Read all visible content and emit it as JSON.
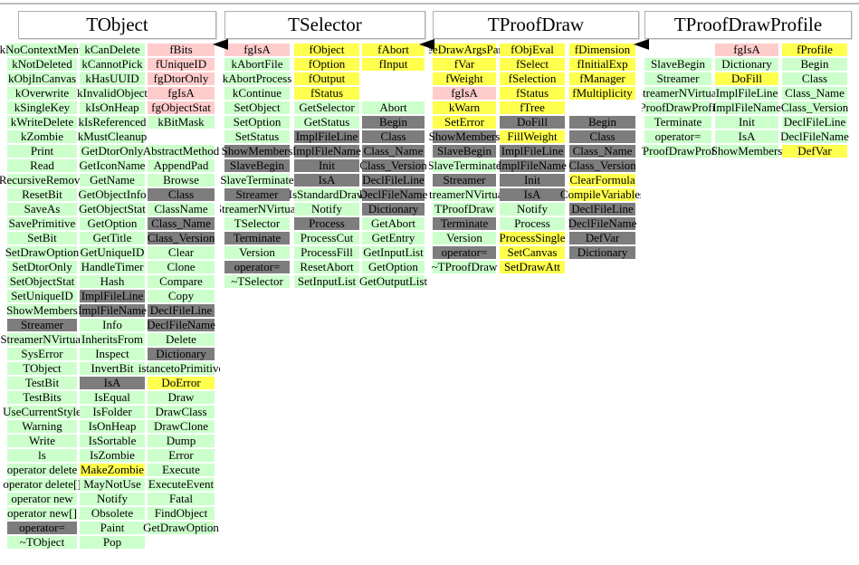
{
  "diagram": {
    "kind": "class-inheritance-members-diagram",
    "colors": {
      "member_green": "#ccffcc",
      "data_pink": "#ffcccc",
      "highlight_yellow": "#ffff4d",
      "inherited_gray": "#7d7d7d",
      "box_border": "#aeaeae",
      "arrow_black": "#000000"
    },
    "arrows": [
      {
        "name": "inheritance-arrow",
        "from": "TSelector",
        "to": "TObject"
      },
      {
        "name": "inheritance-arrow",
        "from": "TProofDraw",
        "to": "TSelector"
      },
      {
        "name": "inheritance-arrow",
        "from": "TProofDrawProfile",
        "to": "TProofDraw"
      }
    ],
    "panels": [
      {
        "title": "TObject",
        "rows": [
          [
            [
              "kNoContextMenu",
              "g"
            ],
            [
              "kCanDelete",
              "g"
            ],
            [
              "fBits",
              "p"
            ]
          ],
          [
            [
              "kNotDeleted",
              "g"
            ],
            [
              "kCannotPick",
              "g"
            ],
            [
              "fUniqueID",
              "p"
            ]
          ],
          [
            [
              "kObjInCanvas",
              "g"
            ],
            [
              "kHasUUID",
              "g"
            ],
            [
              "fgDtorOnly",
              "p"
            ]
          ],
          [
            [
              "kOverwrite",
              "g"
            ],
            [
              "kInvalidObject",
              "g"
            ],
            [
              "fgIsA",
              "p"
            ]
          ],
          [
            [
              "kSingleKey",
              "g"
            ],
            [
              "kIsOnHeap",
              "g"
            ],
            [
              "fgObjectStat",
              "p"
            ]
          ],
          [
            [
              "kWriteDelete",
              "g"
            ],
            [
              "kIsReferenced",
              "g"
            ],
            [
              "kBitMask",
              "g"
            ]
          ],
          [
            [
              "kZombie",
              "g"
            ],
            [
              "kMustCleanup",
              "g"
            ],
            [
              "",
              ""
            ]
          ],
          [
            [
              "Print",
              "g"
            ],
            [
              "GetDtorOnly",
              "g"
            ],
            [
              "AbstractMethod",
              "g"
            ]
          ],
          [
            [
              "Read",
              "g"
            ],
            [
              "GetIconName",
              "g"
            ],
            [
              "AppendPad",
              "g"
            ]
          ],
          [
            [
              "RecursiveRemove",
              "g"
            ],
            [
              "GetName",
              "g"
            ],
            [
              "Browse",
              "g"
            ]
          ],
          [
            [
              "ResetBit",
              "g"
            ],
            [
              "GetObjectInfo",
              "g"
            ],
            [
              "Class",
              "d"
            ]
          ],
          [
            [
              "SaveAs",
              "g"
            ],
            [
              "GetObjectStat",
              "g"
            ],
            [
              "ClassName",
              "g"
            ]
          ],
          [
            [
              "SavePrimitive",
              "g"
            ],
            [
              "GetOption",
              "g"
            ],
            [
              "Class_Name",
              "d"
            ]
          ],
          [
            [
              "SetBit",
              "g"
            ],
            [
              "GetTitle",
              "g"
            ],
            [
              "Class_Version",
              "d"
            ]
          ],
          [
            [
              "SetDrawOption",
              "g"
            ],
            [
              "GetUniqueID",
              "g"
            ],
            [
              "Clear",
              "g"
            ]
          ],
          [
            [
              "SetDtorOnly",
              "g"
            ],
            [
              "HandleTimer",
              "g"
            ],
            [
              "Clone",
              "g"
            ]
          ],
          [
            [
              "SetObjectStat",
              "g"
            ],
            [
              "Hash",
              "g"
            ],
            [
              "Compare",
              "g"
            ]
          ],
          [
            [
              "SetUniqueID",
              "g"
            ],
            [
              "ImplFileLine",
              "d"
            ],
            [
              "Copy",
              "g"
            ]
          ],
          [
            [
              "ShowMembers",
              "g"
            ],
            [
              "ImplFileName",
              "d"
            ],
            [
              "DeclFileLine",
              "d"
            ]
          ],
          [
            [
              "Streamer",
              "d"
            ],
            [
              "Info",
              "g"
            ],
            [
              "DeclFileName",
              "d"
            ]
          ],
          [
            [
              "StreamerNVirtual",
              "g"
            ],
            [
              "InheritsFrom",
              "g"
            ],
            [
              "Delete",
              "g"
            ]
          ],
          [
            [
              "SysError",
              "g"
            ],
            [
              "Inspect",
              "g"
            ],
            [
              "Dictionary",
              "d"
            ]
          ],
          [
            [
              "TObject",
              "g"
            ],
            [
              "InvertBit",
              "g"
            ],
            [
              "istancetoPrimitive",
              "g"
            ]
          ],
          [
            [
              "TestBit",
              "g"
            ],
            [
              "IsA",
              "d"
            ],
            [
              "DoError",
              "y"
            ]
          ],
          [
            [
              "TestBits",
              "g"
            ],
            [
              "IsEqual",
              "g"
            ],
            [
              "Draw",
              "g"
            ]
          ],
          [
            [
              "UseCurrentStyle",
              "g"
            ],
            [
              "IsFolder",
              "g"
            ],
            [
              "DrawClass",
              "g"
            ]
          ],
          [
            [
              "Warning",
              "g"
            ],
            [
              "IsOnHeap",
              "g"
            ],
            [
              "DrawClone",
              "g"
            ]
          ],
          [
            [
              "Write",
              "g"
            ],
            [
              "IsSortable",
              "g"
            ],
            [
              "Dump",
              "g"
            ]
          ],
          [
            [
              "ls",
              "g"
            ],
            [
              "IsZombie",
              "g"
            ],
            [
              "Error",
              "g"
            ]
          ],
          [
            [
              "operator delete",
              "g"
            ],
            [
              "MakeZombie",
              "y"
            ],
            [
              "Execute",
              "g"
            ]
          ],
          [
            [
              "operator delete[]",
              "g"
            ],
            [
              "MayNotUse",
              "g"
            ],
            [
              "ExecuteEvent",
              "g"
            ]
          ],
          [
            [
              "operator new",
              "g"
            ],
            [
              "Notify",
              "g"
            ],
            [
              "Fatal",
              "g"
            ]
          ],
          [
            [
              "operator new[]",
              "g"
            ],
            [
              "Obsolete",
              "g"
            ],
            [
              "FindObject",
              "g"
            ]
          ],
          [
            [
              "operator=",
              "d"
            ],
            [
              "Paint",
              "g"
            ],
            [
              "GetDrawOption",
              "g"
            ]
          ],
          [
            [
              "~TObject",
              "g"
            ],
            [
              "Pop",
              "g"
            ],
            [
              "",
              ""
            ]
          ]
        ]
      },
      {
        "title": "TSelector",
        "rows": [
          [
            [
              "fgIsA",
              "p"
            ],
            [
              "fObject",
              "y"
            ],
            [
              "fAbort",
              "y"
            ]
          ],
          [
            [
              "kAbortFile",
              "g"
            ],
            [
              "fOption",
              "y"
            ],
            [
              "fInput",
              "y"
            ]
          ],
          [
            [
              "kAbortProcess",
              "g"
            ],
            [
              "fOutput",
              "y"
            ],
            [
              "",
              ""
            ]
          ],
          [
            [
              "kContinue",
              "g"
            ],
            [
              "fStatus",
              "y"
            ],
            [
              "",
              ""
            ]
          ],
          [
            [
              "SetObject",
              "g"
            ],
            [
              "GetSelector",
              "g"
            ],
            [
              "Abort",
              "g"
            ]
          ],
          [
            [
              "SetOption",
              "g"
            ],
            [
              "GetStatus",
              "g"
            ],
            [
              "Begin",
              "d"
            ]
          ],
          [
            [
              "SetStatus",
              "g"
            ],
            [
              "ImplFileLine",
              "d"
            ],
            [
              "Class",
              "d"
            ]
          ],
          [
            [
              "ShowMembers",
              "d"
            ],
            [
              "ImplFileName",
              "d"
            ],
            [
              "Class_Name",
              "d"
            ]
          ],
          [
            [
              "SlaveBegin",
              "d"
            ],
            [
              "Init",
              "d"
            ],
            [
              "Class_Version",
              "d"
            ]
          ],
          [
            [
              "SlaveTerminate",
              "g"
            ],
            [
              "IsA",
              "d"
            ],
            [
              "DeclFileLine",
              "d"
            ]
          ],
          [
            [
              "Streamer",
              "d"
            ],
            [
              "IsStandardDraw",
              "g"
            ],
            [
              "DeclFileName",
              "d"
            ]
          ],
          [
            [
              "StreamerNVirtual",
              "g"
            ],
            [
              "Notify",
              "g"
            ],
            [
              "Dictionary",
              "d"
            ]
          ],
          [
            [
              "TSelector",
              "g"
            ],
            [
              "Process",
              "d"
            ],
            [
              "GetAbort",
              "g"
            ]
          ],
          [
            [
              "Terminate",
              "d"
            ],
            [
              "ProcessCut",
              "g"
            ],
            [
              "GetEntry",
              "g"
            ]
          ],
          [
            [
              "Version",
              "g"
            ],
            [
              "ProcessFill",
              "g"
            ],
            [
              "GetInputList",
              "g"
            ]
          ],
          [
            [
              "operator=",
              "d"
            ],
            [
              "ResetAbort",
              "g"
            ],
            [
              "GetOption",
              "g"
            ]
          ],
          [
            [
              "~TSelector",
              "g"
            ],
            [
              "SetInputList",
              "g"
            ],
            [
              "GetOutputList",
              "g"
            ]
          ]
        ]
      },
      {
        "title": "TProofDraw",
        "rows": [
          [
            [
              "fTreeDrawArgsParser",
              "y"
            ],
            [
              "fObjEval",
              "y"
            ],
            [
              "fDimension",
              "y"
            ]
          ],
          [
            [
              "fVar",
              "y"
            ],
            [
              "fSelect",
              "y"
            ],
            [
              "fInitialExp",
              "y"
            ]
          ],
          [
            [
              "fWeight",
              "y"
            ],
            [
              "fSelection",
              "y"
            ],
            [
              "fManager",
              "y"
            ]
          ],
          [
            [
              "fgIsA",
              "p"
            ],
            [
              "fStatus",
              "y"
            ],
            [
              "fMultiplicity",
              "y"
            ]
          ],
          [
            [
              "kWarn",
              "y"
            ],
            [
              "fTree",
              "y"
            ],
            [
              "",
              ""
            ]
          ],
          [
            [
              "SetError",
              "y"
            ],
            [
              "DoFill",
              "d"
            ],
            [
              "Begin",
              "d"
            ]
          ],
          [
            [
              "ShowMembers",
              "d"
            ],
            [
              "FillWeight",
              "y"
            ],
            [
              "Class",
              "d"
            ]
          ],
          [
            [
              "SlaveBegin",
              "d"
            ],
            [
              "ImplFileLine",
              "d"
            ],
            [
              "Class_Name",
              "d"
            ]
          ],
          [
            [
              "SlaveTerminate",
              "g"
            ],
            [
              "ImplFileName",
              "d"
            ],
            [
              "Class_Version",
              "d"
            ]
          ],
          [
            [
              "Streamer",
              "d"
            ],
            [
              "Init",
              "d"
            ],
            [
              "ClearFormula",
              "y"
            ]
          ],
          [
            [
              "StreamerNVirtual",
              "g"
            ],
            [
              "IsA",
              "d"
            ],
            [
              "CompileVariables",
              "y"
            ]
          ],
          [
            [
              "TProofDraw",
              "g"
            ],
            [
              "Notify",
              "g"
            ],
            [
              "DeclFileLine",
              "d"
            ]
          ],
          [
            [
              "Terminate",
              "d"
            ],
            [
              "Process",
              "g"
            ],
            [
              "DeclFileName",
              "d"
            ]
          ],
          [
            [
              "Version",
              "g"
            ],
            [
              "ProcessSingle",
              "y"
            ],
            [
              "DefVar",
              "d"
            ]
          ],
          [
            [
              "operator=",
              "d"
            ],
            [
              "SetCanvas",
              "y"
            ],
            [
              "Dictionary",
              "d"
            ]
          ],
          [
            [
              "~TProofDraw",
              "g"
            ],
            [
              "SetDrawAtt",
              "y"
            ],
            [
              "",
              ""
            ]
          ]
        ]
      },
      {
        "title": "TProofDrawProfile",
        "rows": [
          [
            [
              "",
              ""
            ],
            [
              "fgIsA",
              "p"
            ],
            [
              "fProfile",
              "y"
            ]
          ],
          [
            [
              "SlaveBegin",
              "g"
            ],
            [
              "Dictionary",
              "g"
            ],
            [
              "Begin",
              "g"
            ]
          ],
          [
            [
              "Streamer",
              "g"
            ],
            [
              "DoFill",
              "y"
            ],
            [
              "Class",
              "g"
            ]
          ],
          [
            [
              "StreamerNVirtual",
              "g"
            ],
            [
              "ImplFileLine",
              "g"
            ],
            [
              "Class_Name",
              "g"
            ]
          ],
          [
            [
              "TProofDrawProfile",
              "g"
            ],
            [
              "ImplFileName",
              "g"
            ],
            [
              "Class_Version",
              "g"
            ]
          ],
          [
            [
              "Terminate",
              "g"
            ],
            [
              "Init",
              "g"
            ],
            [
              "DeclFileLine",
              "g"
            ]
          ],
          [
            [
              "operator=",
              "g"
            ],
            [
              "IsA",
              "g"
            ],
            [
              "DeclFileName",
              "g"
            ]
          ],
          [
            [
              "~TProofDrawProfile",
              "g"
            ],
            [
              "ShowMembers",
              "g"
            ],
            [
              "DefVar",
              "y"
            ]
          ]
        ]
      }
    ]
  }
}
